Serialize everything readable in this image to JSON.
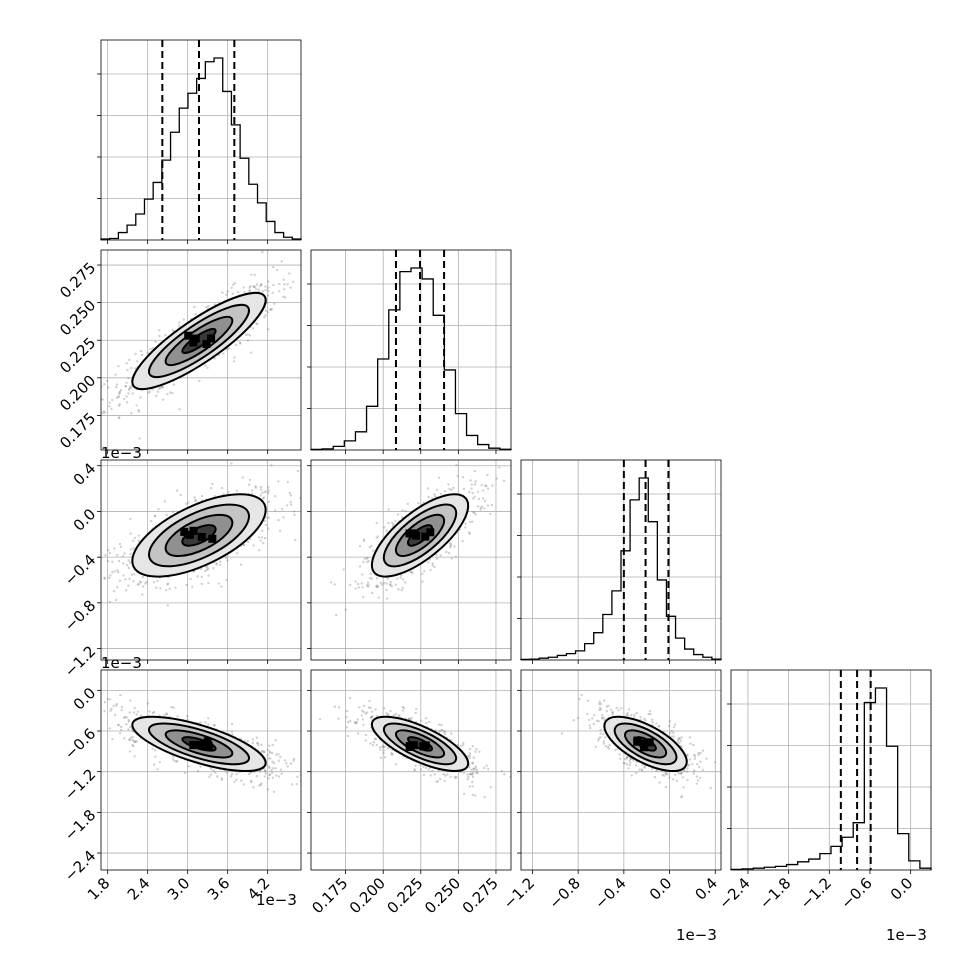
{
  "chart_data": {
    "type": "corner",
    "grid": true,
    "offset_text": "1e−3",
    "params": [
      {
        "range": [
          1.7,
          4.7
        ],
        "ticks": [
          "1.8",
          "2.4",
          "3.0",
          "3.6",
          "4.2"
        ],
        "tick_values": [
          1.8,
          2.4,
          3.0,
          3.6,
          4.2
        ],
        "scale": "1e-3",
        "quantiles": [
          2.62,
          3.17,
          3.7
        ],
        "mean": 3.17,
        "sd": 0.5
      },
      {
        "range": [
          0.152,
          0.285
        ],
        "ticks": [
          "0.175",
          "0.200",
          "0.225",
          "0.250",
          "0.275"
        ],
        "tick_values": [
          0.175,
          0.2,
          0.225,
          0.25,
          0.275
        ],
        "scale": "",
        "quantiles": [
          0.2085,
          0.2245,
          0.2405
        ],
        "mean": 0.2245,
        "sd": 0.016
      },
      {
        "range": [
          -1.3,
          0.45
        ],
        "ticks": [
          "−1.2",
          "−0.8",
          "−0.4",
          "0.0",
          "0.4"
        ],
        "tick_values": [
          -1.2,
          -0.8,
          -0.4,
          0.0,
          0.4
        ],
        "scale": "1e-3",
        "quantiles": [
          -0.4,
          -0.21,
          -0.01
        ],
        "mean": -0.21,
        "sd": 0.18
      },
      {
        "range": [
          -2.65,
          0.3
        ],
        "ticks": [
          "−2.4",
          "−1.8",
          "−1.2",
          "−0.6",
          "0.0"
        ],
        "tick_values": [
          -2.4,
          -1.8,
          -1.2,
          -0.6,
          0.0
        ],
        "scale": "1e-3",
        "quantiles": [
          -1.03,
          -0.79,
          -0.59
        ],
        "mean": -0.79,
        "sd": 0.2
      }
    ],
    "histograms": [
      {
        "values": [
          0.5,
          0.8,
          4,
          8,
          14,
          22,
          31,
          43,
          58,
          71,
          79,
          87,
          96,
          98,
          80,
          62,
          44,
          30,
          20,
          10,
          4,
          1.5,
          0.5
        ]
      },
      {
        "values": [
          0.3,
          0.6,
          2,
          5,
          10,
          24,
          50,
          77,
          98,
          100,
          94,
          74,
          44,
          20,
          8,
          3,
          1,
          0.4
        ]
      },
      {
        "values": [
          0.3,
          0.5,
          1,
          1.5,
          2.5,
          3.5,
          5,
          9,
          15,
          25,
          38,
          60,
          88,
          100,
          76,
          44,
          24,
          12,
          6,
          3,
          1.5,
          0.5
        ]
      },
      {
        "values": [
          0.3,
          0.6,
          1,
          1.5,
          2,
          3,
          4.5,
          6,
          9,
          13,
          18,
          26,
          92,
          100,
          68,
          20,
          5,
          1
        ]
      }
    ],
    "pairs": [
      {
        "x": 0,
        "y": 1,
        "corr": 0.85
      },
      {
        "x": 0,
        "y": 2,
        "corr": 0.62
      },
      {
        "x": 1,
        "y": 2,
        "corr": 0.72
      },
      {
        "x": 0,
        "y": 3,
        "corr": -0.7
      },
      {
        "x": 1,
        "y": 3,
        "corr": -0.72
      },
      {
        "x": 2,
        "y": 3,
        "corr": -0.66
      }
    ],
    "contour_levels_sigma": [
      0.5,
      1.0,
      1.5,
      2.0
    ]
  }
}
